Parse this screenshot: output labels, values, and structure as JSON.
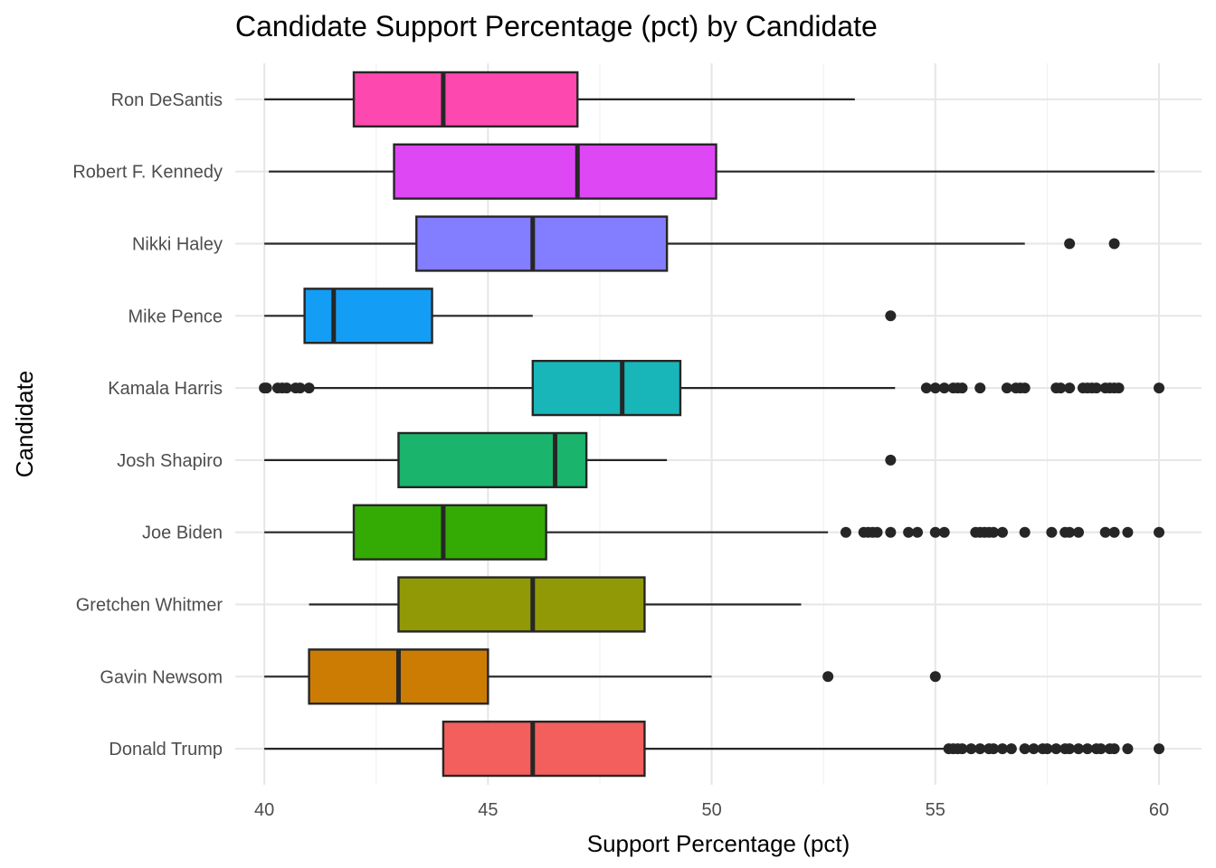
{
  "chart_data": {
    "type": "boxplot",
    "title": "Candidate Support Percentage (pct) by Candidate",
    "xlabel": "Support Percentage (pct)",
    "ylabel": "Candidate",
    "xlim": [
      39.35,
      60.95
    ],
    "xticks": [
      40,
      45,
      50,
      55,
      60
    ],
    "grid": true,
    "legend": "none",
    "categories": [
      "Donald Trump",
      "Gavin Newsom",
      "Gretchen Whitmer",
      "Joe Biden",
      "Josh Shapiro",
      "Kamala Harris",
      "Mike Pence",
      "Nikki Haley",
      "Robert F. Kennedy",
      "Ron DeSantis"
    ],
    "series": [
      {
        "category": "Donald Trump",
        "color": "#F25F5C",
        "whisker_low": 40,
        "q1": 44,
        "median": 46,
        "q3": 48.5,
        "whisker_high": 55.2,
        "outliers": [
          55.3,
          55.4,
          55.5,
          55.6,
          55.8,
          56.0,
          56.2,
          56.3,
          56.5,
          56.7,
          57.0,
          57.2,
          57.4,
          57.5,
          57.7,
          57.9,
          58.0,
          58.2,
          58.4,
          58.6,
          58.7,
          58.9,
          59.0,
          59.3,
          60.0
        ]
      },
      {
        "category": "Gavin Newsom",
        "color": "#CD7C03",
        "whisker_low": 40,
        "q1": 41,
        "median": 43,
        "q3": 45,
        "whisker_high": 50,
        "outliers": [
          52.6,
          55.0
        ]
      },
      {
        "category": "Gretchen Whitmer",
        "color": "#919906",
        "whisker_low": 41,
        "q1": 43,
        "median": 46,
        "q3": 48.5,
        "whisker_high": 52,
        "outliers": []
      },
      {
        "category": "Joe Biden",
        "color": "#34AB04",
        "whisker_low": 40,
        "q1": 42,
        "median": 44,
        "q3": 46.3,
        "whisker_high": 52.6,
        "outliers": [
          53.0,
          53.4,
          53.5,
          53.6,
          53.7,
          54.0,
          54.4,
          54.6,
          55.0,
          55.2,
          55.9,
          56.0,
          56.1,
          56.2,
          56.3,
          56.5,
          57.0,
          57.6,
          57.9,
          58.0,
          58.2,
          58.8,
          59.0,
          59.3,
          60.0
        ]
      },
      {
        "category": "Josh Shapiro",
        "color": "#1BB46C",
        "whisker_low": 40,
        "q1": 43,
        "median": 46.5,
        "q3": 47.2,
        "whisker_high": 49,
        "outliers": [
          54.0
        ]
      },
      {
        "category": "Kamala Harris",
        "color": "#19B6B9",
        "whisker_low": 41.1,
        "q1": 46,
        "median": 48,
        "q3": 49.3,
        "whisker_high": 54.1,
        "outliers": [
          40.0,
          40.05,
          40.3,
          40.4,
          40.5,
          40.7,
          40.8,
          41.0,
          54.8,
          55.0,
          55.2,
          55.4,
          55.5,
          55.6,
          56.0,
          56.6,
          56.8,
          56.9,
          57.0,
          57.7,
          57.8,
          58.0,
          58.3,
          58.4,
          58.5,
          58.6,
          58.8,
          58.9,
          59.0,
          59.1,
          60.0
        ]
      },
      {
        "category": "Mike Pence",
        "color": "#149DF4",
        "whisker_low": 40,
        "q1": 40.9,
        "median": 41.55,
        "q3": 43.75,
        "whisker_high": 46,
        "outliers": [
          54.0
        ]
      },
      {
        "category": "Nikki Haley",
        "color": "#837DFF",
        "whisker_low": 40,
        "q1": 43.4,
        "median": 46,
        "q3": 49,
        "whisker_high": 57,
        "outliers": [
          58.0,
          59.0
        ]
      },
      {
        "category": "Robert F. Kennedy",
        "color": "#DE48F4",
        "whisker_low": 40.1,
        "q1": 42.9,
        "median": 47,
        "q3": 50.1,
        "whisker_high": 59.9,
        "outliers": []
      },
      {
        "category": "Ron DeSantis",
        "color": "#FD48B0",
        "whisker_low": 40,
        "q1": 42,
        "median": 44,
        "q3": 47,
        "whisker_high": 53.2,
        "outliers": []
      }
    ]
  }
}
